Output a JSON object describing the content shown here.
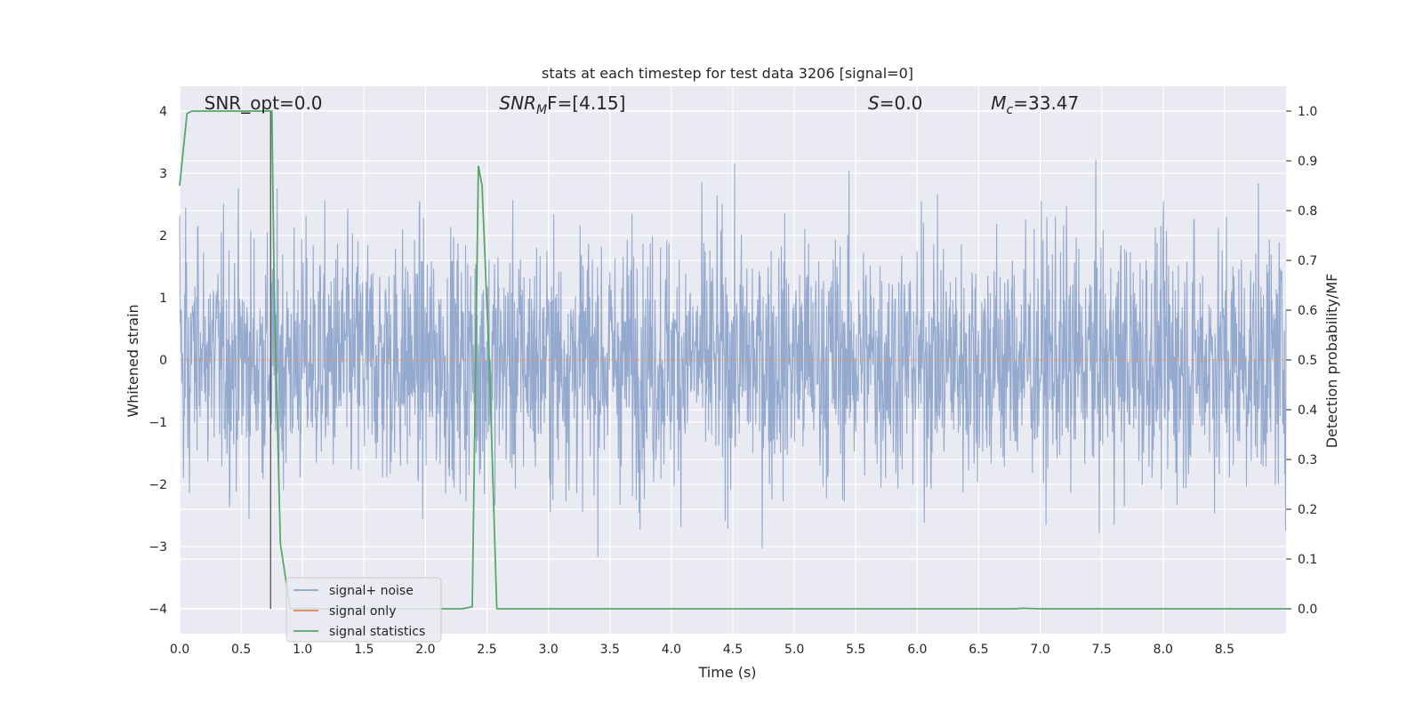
{
  "chart_data": {
    "type": "line",
    "title": "stats at each timestep for test data 3206 [signal=0]",
    "xlabel": "Time (s)",
    "ylabel": "Whitened strain",
    "y2label": "Detection probability/MF",
    "xlim": [
      0.0,
      9.0
    ],
    "ylim": [
      -4.4,
      4.4
    ],
    "y2lim": [
      -0.05,
      1.05
    ],
    "x_ticks": [
      "0.0",
      "0.5",
      "1.0",
      "1.5",
      "2.0",
      "2.5",
      "3.0",
      "3.5",
      "4.0",
      "4.5",
      "5.0",
      "5.5",
      "6.0",
      "6.5",
      "7.0",
      "7.5",
      "8.0",
      "8.5"
    ],
    "y_ticks": [
      "−4",
      "−3",
      "−2",
      "−1",
      "0",
      "1",
      "2",
      "3",
      "4"
    ],
    "y2_ticks": [
      "0.0",
      "0.1",
      "0.2",
      "0.3",
      "0.4",
      "0.5",
      "0.6",
      "0.7",
      "0.8",
      "0.9",
      "1.0"
    ],
    "grid": true,
    "legend_position": "lower-left",
    "annotations": [
      {
        "text": "SNR_opt=0.0",
        "x": 0.2
      },
      {
        "text": "SNR",
        "sub": "M",
        "suffix": "F=[4.15]",
        "italic": true,
        "x": 2.6
      },
      {
        "text": "S",
        "suffix": "=0.0",
        "italic": true,
        "x": 5.6
      },
      {
        "text": "M",
        "sub": "c",
        "suffix": "=33.47",
        "italic": true,
        "x": 6.6
      }
    ],
    "series": [
      {
        "name": "signal+ noise",
        "color": "#4c72b0",
        "kind": "noise",
        "typical_abs_max": 2.0,
        "peak_abs_max": 3.7
      },
      {
        "name": "signal only",
        "color": "#dd8452",
        "kind": "flat",
        "y": 0.0
      },
      {
        "name": "signal statistics",
        "color": "#55a868",
        "axis": "right",
        "x": [
          0.0,
          0.02,
          0.06,
          0.1,
          0.2,
          0.4,
          0.6,
          0.72,
          0.75,
          0.77,
          0.82,
          0.9,
          1.0,
          1.5,
          2.0,
          2.3,
          2.38,
          2.43,
          2.46,
          2.52,
          2.58,
          3.0,
          4.0,
          5.0,
          6.0,
          6.8,
          6.85,
          7.0,
          8.0,
          9.0
        ],
        "y": [
          0.85,
          0.9,
          0.995,
          1.0,
          1.0,
          1.0,
          1.0,
          1.0,
          1.0,
          0.63,
          0.13,
          0.0,
          0.0,
          0.0,
          0.0,
          0.0,
          0.004,
          0.89,
          0.85,
          0.49,
          0.0,
          0.0,
          0.0,
          0.0,
          0.0,
          0.0,
          0.001,
          0.0,
          0.0,
          0.0
        ]
      },
      {
        "name": "",
        "color": "#555555",
        "kind": "vline",
        "x": 0.74,
        "y_from": -4.0,
        "y_to": 4.0
      }
    ]
  }
}
